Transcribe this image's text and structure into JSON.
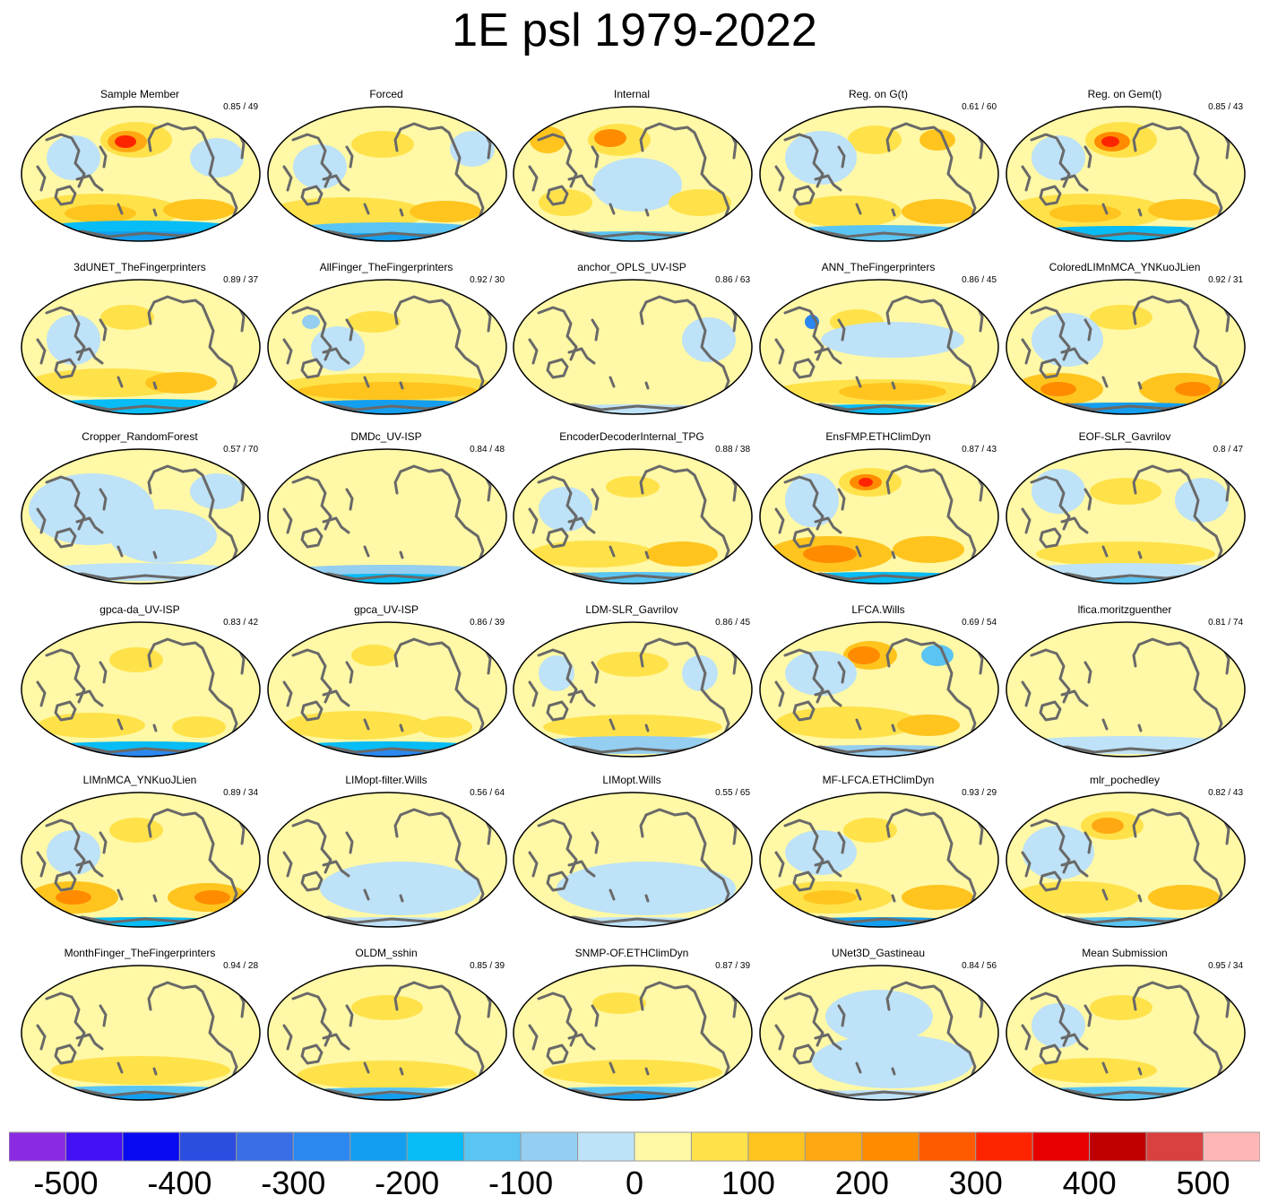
{
  "title": "1E psl 1979-2022",
  "panels": [
    {
      "name": "Sample Member",
      "score": "0.85 / 49"
    },
    {
      "name": "Forced",
      "score": ""
    },
    {
      "name": "Internal",
      "score": ""
    },
    {
      "name": "Reg. on G(t)",
      "score": "0.61 / 60"
    },
    {
      "name": "Reg. on Gem(t)",
      "score": "0.85 / 43"
    },
    {
      "name": "3dUNET_TheFingerprinters",
      "score": "0.89 / 37"
    },
    {
      "name": "AllFinger_TheFingerprinters",
      "score": "0.92 / 30"
    },
    {
      "name": "anchor_OPLS_UV-ISP",
      "score": "0.86 / 63"
    },
    {
      "name": "ANN_TheFingerprinters",
      "score": "0.86 / 45"
    },
    {
      "name": "ColoredLIMnMCA_YNKuoJLien",
      "score": "0.92 / 31"
    },
    {
      "name": "Cropper_RandomForest",
      "score": "0.57 / 70"
    },
    {
      "name": "DMDc_UV-ISP",
      "score": "0.84 / 48"
    },
    {
      "name": "EncoderDecoderInternal_TPG",
      "score": "0.88 / 38"
    },
    {
      "name": "EnsFMP.ETHClimDyn",
      "score": "0.87 / 43"
    },
    {
      "name": "EOF-SLR_Gavrilov",
      "score": "0.8 / 47"
    },
    {
      "name": "gpca-da_UV-ISP",
      "score": "0.83 / 42"
    },
    {
      "name": "gpca_UV-ISP",
      "score": "0.86 / 39"
    },
    {
      "name": "LDM-SLR_Gavrilov",
      "score": "0.86 / 45"
    },
    {
      "name": "LFCA.Wills",
      "score": "0.69 / 54"
    },
    {
      "name": "lfica.moritzguenther",
      "score": "0.81 / 74"
    },
    {
      "name": "LIMnMCA_YNKuoJLien",
      "score": "0.89 / 34"
    },
    {
      "name": "LIMopt-filter.Wills",
      "score": "0.56 / 64"
    },
    {
      "name": "LIMopt.Wills",
      "score": "0.55 / 65"
    },
    {
      "name": "MF-LFCA.ETHClimDyn",
      "score": "0.93 / 29"
    },
    {
      "name": "mlr_pochedley",
      "score": "0.82 / 43"
    },
    {
      "name": "MonthFinger_TheFingerprinters",
      "score": "0.94 / 28"
    },
    {
      "name": "OLDM_sshin",
      "score": "0.85 / 39"
    },
    {
      "name": "SNMP-OF.ETHClimDyn",
      "score": "0.87 / 39"
    },
    {
      "name": "UNet3D_Gastineau",
      "score": "0.84 / 56"
    },
    {
      "name": "Mean Submission",
      "score": "0.95 / 34"
    }
  ],
  "colorbar": {
    "colors": [
      "#8a2be2",
      "#4410f5",
      "#0a0af0",
      "#2b4de0",
      "#3a6ee6",
      "#2b88f0",
      "#149eef",
      "#08bcf5",
      "#5ac4f2",
      "#94cef0",
      "#bee2f7",
      "#fff8a6",
      "#ffe24a",
      "#ffc41e",
      "#ffa812",
      "#ff8c00",
      "#ff5a00",
      "#ff2400",
      "#e60000",
      "#c00000",
      "#d94040",
      "#ffb6b6"
    ],
    "labels": [
      "-500",
      "-400",
      "-300",
      "-200",
      "-100",
      "0",
      "100",
      "200",
      "300",
      "400",
      "500"
    ],
    "land_color": "#696969",
    "ocean_base": "#fff8a6"
  }
}
